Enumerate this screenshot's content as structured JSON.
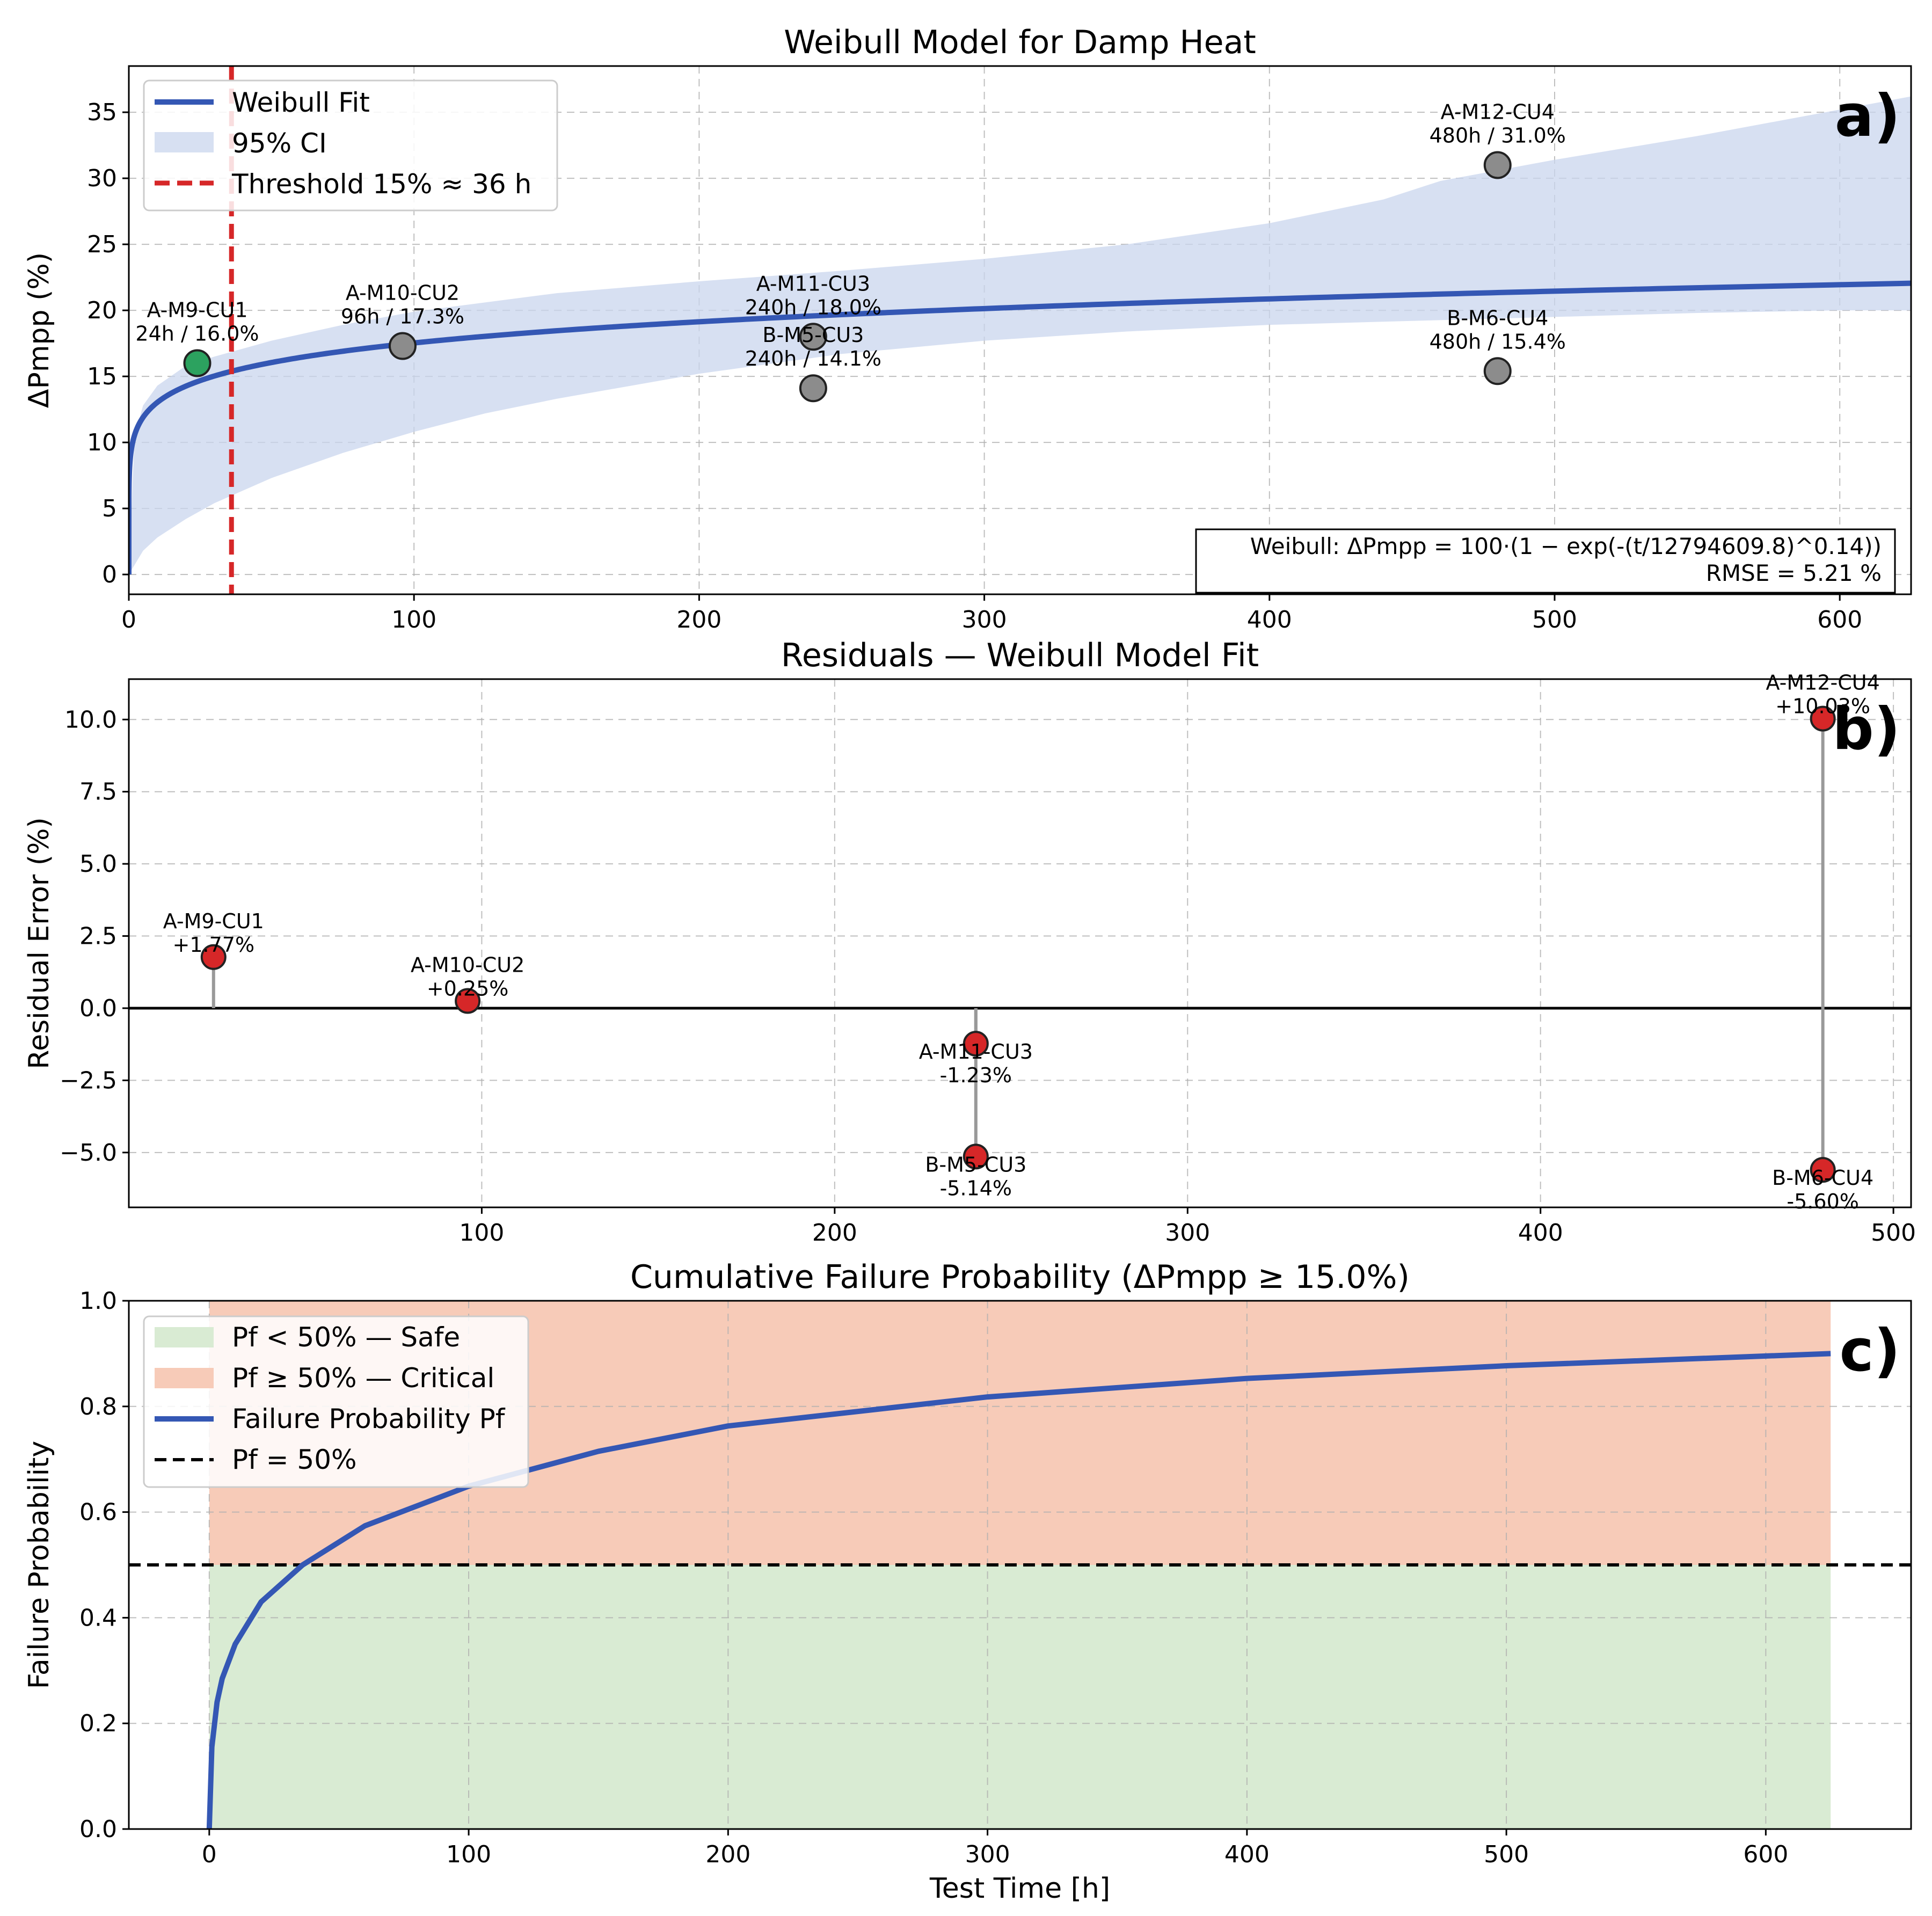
{
  "chart_data": [
    {
      "type": "scatter",
      "panel_tag": "a)",
      "title": "Weibull Model for Damp Heat",
      "ylabel": "ΔPmpp (%)",
      "xlabel": "",
      "xlim": [
        0,
        625
      ],
      "ylim": [
        -1.5,
        38.5
      ],
      "xticks": [
        0,
        100,
        200,
        300,
        400,
        500,
        600
      ],
      "yticks": [
        0,
        5,
        10,
        15,
        20,
        25,
        30,
        35
      ],
      "grid": true,
      "legend_position": "top-left",
      "legend": [
        {
          "key": "fit",
          "label": "Weibull Fit"
        },
        {
          "key": "ci",
          "label": "95% CI"
        },
        {
          "key": "threshold",
          "label": "Threshold 15% ≈ 36 h"
        }
      ],
      "fit": {
        "scale": 12794609.8,
        "shape": 0.14
      },
      "threshold_x": 36,
      "ci_lower": {
        "x": [
          0,
          5,
          10,
          20,
          30,
          50,
          75,
          100,
          125,
          150,
          200,
          250,
          300,
          350,
          400,
          450,
          500,
          550,
          600,
          625
        ],
        "y": [
          0,
          1.8,
          2.8,
          4.2,
          5.4,
          7.3,
          9.2,
          10.8,
          12.2,
          13.3,
          15.2,
          16.7,
          17.7,
          18.4,
          18.9,
          19.2,
          19.5,
          19.8,
          20.0,
          20.0
        ]
      },
      "ci_upper": {
        "x": [
          0,
          2,
          5,
          10,
          20,
          30,
          50,
          75,
          100,
          150,
          200,
          250,
          300,
          350,
          400,
          440,
          460,
          500,
          550,
          600,
          625
        ],
        "y": [
          0,
          10.5,
          12.8,
          14.3,
          15.8,
          16.5,
          17.7,
          18.9,
          19.9,
          21.3,
          22.2,
          23.0,
          23.9,
          25.0,
          26.6,
          28.4,
          29.8,
          31.4,
          33.2,
          35.2,
          36.2
        ]
      },
      "points": [
        {
          "x": 24,
          "y": 16.0,
          "name": "A-M9-CU1",
          "label": "24h / 16.0%",
          "color": "#2ca25f"
        },
        {
          "x": 96,
          "y": 17.3,
          "name": "A-M10-CU2",
          "label": "96h / 17.3%",
          "color": "#8c8c8c"
        },
        {
          "x": 240,
          "y": 18.0,
          "name": "A-M11-CU3",
          "label": "240h / 18.0%",
          "color": "#8c8c8c"
        },
        {
          "x": 240,
          "y": 14.1,
          "name": "B-M5-CU3",
          "label": "240h / 14.1%",
          "color": "#8c8c8c"
        },
        {
          "x": 480,
          "y": 31.0,
          "name": "A-M12-CU4",
          "label": "480h / 31.0%",
          "color": "#8c8c8c"
        },
        {
          "x": 480,
          "y": 15.4,
          "name": "B-M6-CU4",
          "label": "480h / 15.4%",
          "color": "#8c8c8c"
        }
      ],
      "equation_line1": "Weibull: ΔPmpp = 100·(1 − exp(-(t/12794609.8)^0.14))",
      "equation_line2": "RMSE = 5.21 %"
    },
    {
      "type": "scatter",
      "panel_tag": "b)",
      "title": "Residuals — Weibull Model Fit",
      "ylabel": "Residual Error (%)",
      "xlabel": "",
      "xlim": [
        0,
        505
      ],
      "ylim": [
        -6.9,
        11.4
      ],
      "xticks": [
        100,
        200,
        300,
        400,
        500
      ],
      "yticks": [
        -5.0,
        -2.5,
        0.0,
        2.5,
        5.0,
        7.5,
        10.0
      ],
      "ytick_labels": [
        "−5.0",
        "−2.5",
        "0.0",
        "2.5",
        "5.0",
        "7.5",
        "10.0"
      ],
      "grid": true,
      "points": [
        {
          "x": 24,
          "y": 1.77,
          "name": "A-M9-CU1",
          "label": "+1.77%"
        },
        {
          "x": 96,
          "y": 0.25,
          "name": "A-M10-CU2",
          "label": "+0.25%"
        },
        {
          "x": 240,
          "y": -1.23,
          "name": "A-M11-CU3",
          "label": "-1.23%"
        },
        {
          "x": 240,
          "y": -5.14,
          "name": "B-M5-CU3",
          "label": "-5.14%"
        },
        {
          "x": 480,
          "y": 10.03,
          "name": "A-M12-CU4",
          "label": "+10.03%"
        },
        {
          "x": 480,
          "y": -5.6,
          "name": "B-M6-CU4",
          "label": "-5.60%"
        }
      ],
      "point_color": "#d62728"
    },
    {
      "type": "area",
      "panel_tag": "c)",
      "title": "Cumulative Failure Probability (ΔPmpp ≥ 15.0%)",
      "ylabel": "Failure Probability",
      "xlabel": "Test Time [h]",
      "xlim": [
        -31,
        656
      ],
      "ylim": [
        0,
        1.0
      ],
      "xticks": [
        0,
        100,
        200,
        300,
        400,
        500,
        600
      ],
      "yticks": [
        0.0,
        0.2,
        0.4,
        0.6,
        0.8,
        1.0
      ],
      "grid": true,
      "legend_position": "top-left",
      "legend": [
        {
          "key": "safe",
          "label": "Pf < 50% — Safe"
        },
        {
          "key": "critical",
          "label": "Pf ≥ 50% — Critical"
        },
        {
          "key": "pf",
          "label": "Failure Probability Pf"
        },
        {
          "key": "half",
          "label": "Pf = 50%"
        }
      ],
      "x_range": [
        0,
        625
      ],
      "threshold_pf": 0.5,
      "series": [
        {
          "name": "Failure Probability Pf",
          "x": [
            0,
            1,
            3,
            5,
            10,
            20,
            36,
            60,
            100,
            150,
            200,
            300,
            400,
            500,
            625
          ],
          "y": [
            0,
            0.155,
            0.24,
            0.285,
            0.35,
            0.43,
            0.5,
            0.574,
            0.649,
            0.715,
            0.763,
            0.818,
            0.853,
            0.877,
            0.9
          ]
        }
      ],
      "colors": {
        "safe": "#d9ebd3",
        "critical": "#f7cbb8",
        "line": "#3457b4"
      }
    }
  ]
}
